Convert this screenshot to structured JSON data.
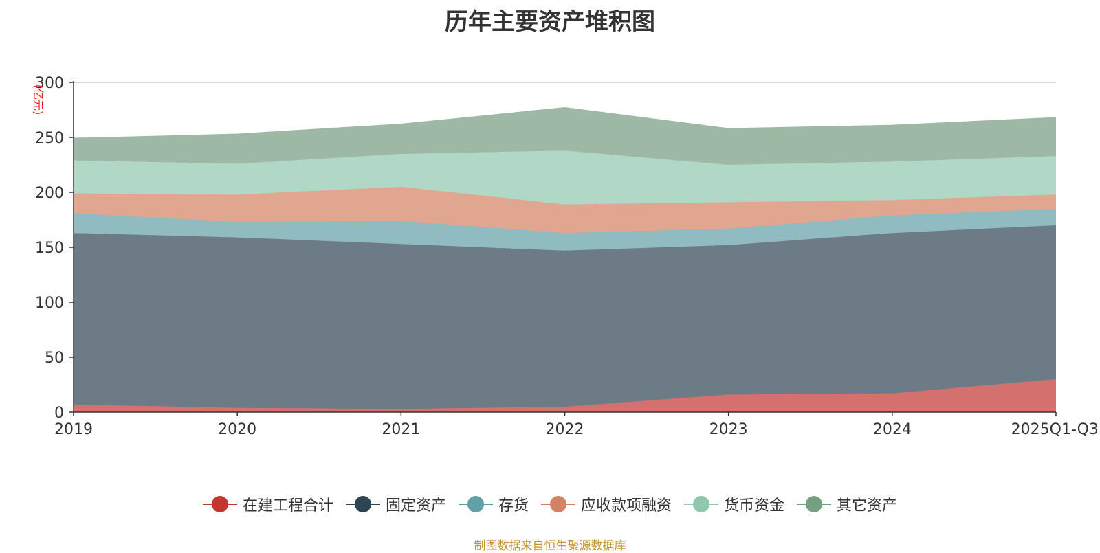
{
  "chart_data": {
    "type": "area",
    "stacked": true,
    "title": "历年主要资产堆积图",
    "unit_label": "(亿元)",
    "categories": [
      "2019",
      "2020",
      "2021",
      "2022",
      "2023",
      "2024",
      "2025Q1-Q3"
    ],
    "ylim": [
      0,
      300
    ],
    "yticks": [
      "0",
      "50",
      "100",
      "150",
      "200",
      "250",
      "300"
    ],
    "grid": true,
    "legend_position": "bottom",
    "series": [
      {
        "name": "在建工程合计",
        "color": "#c23531",
        "fill": "#d4706e",
        "values": [
          7,
          4,
          3,
          5,
          16,
          17,
          30
        ]
      },
      {
        "name": "固定资产",
        "color": "#2f4554",
        "fill": "#6d7b87",
        "values": [
          156,
          155,
          150,
          142,
          136,
          146,
          140
        ]
      },
      {
        "name": "存货",
        "color": "#61a0a8",
        "fill": "#8fbbc1",
        "values": [
          18,
          14,
          21,
          16,
          15,
          16,
          15
        ]
      },
      {
        "name": "应收款项融资",
        "color": "#d48265",
        "fill": "#e0a690",
        "values": [
          18,
          25,
          31,
          26,
          24,
          14,
          13
        ]
      },
      {
        "name": "货币资金",
        "color": "#91c7ae",
        "fill": "#b1d8c6",
        "values": [
          30,
          28,
          30,
          49,
          34,
          35,
          35
        ]
      },
      {
        "name": "其它资产",
        "color": "#749f83",
        "fill": "#9db9a6",
        "values": [
          20,
          27,
          27,
          39,
          33,
          33,
          35
        ]
      }
    ]
  },
  "source_note": "制图数据来自恒生聚源数据库"
}
